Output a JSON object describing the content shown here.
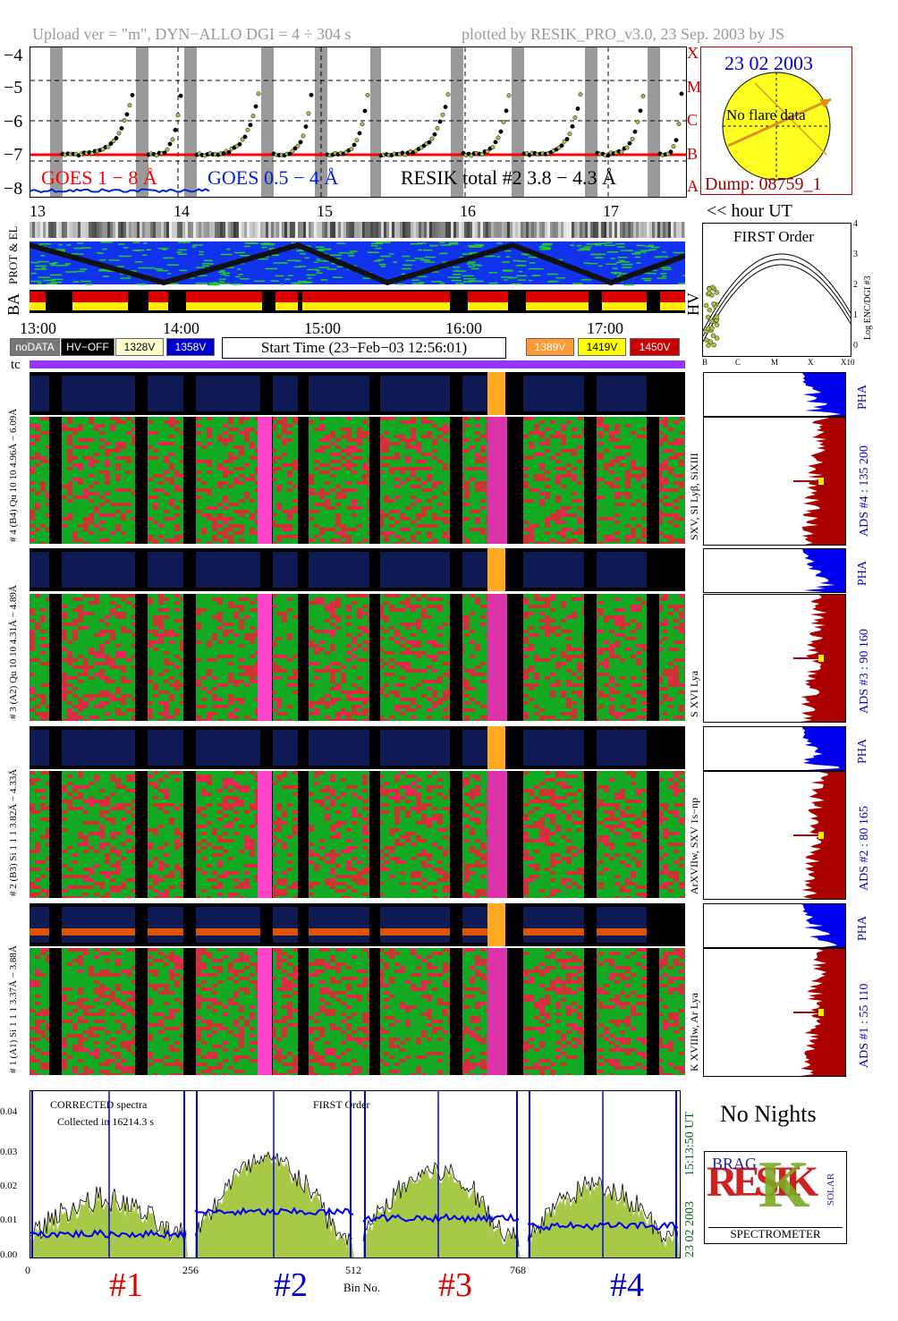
{
  "header": {
    "upload_info": "Upload ver = \"m\", DYN−ALLO DGI =   4 ÷ 304 s",
    "plot_info": "plotted by RESIK_PRO_v3.0, 23 Sep. 2003 by JS"
  },
  "goes_panel": {
    "y_ticks": [
      "−4",
      "−5",
      "−6",
      "−7",
      "−8"
    ],
    "class_labels": [
      "X",
      "M",
      "C",
      "B",
      "A"
    ],
    "legend_goes1": "GOES 1 − 8 Å",
    "legend_goes05": "GOES 0.5 − 4 Å",
    "legend_resik": "RESIK total #2  3.8 − 4.3 Å",
    "hour_labels": [
      "13",
      "14",
      "15",
      "16",
      "17"
    ],
    "hour_ut_label": "<< hour UT",
    "colors": {
      "goes1": "#ff0000",
      "goes05": "#0022dd",
      "resik": "#a8c040",
      "gaps": "#9a9a9a"
    }
  },
  "sun_panel": {
    "date": "23 02 2003",
    "note": "No flare data",
    "dump": "Dump: 08759_1"
  },
  "status_strips": {
    "label_prot": "PROT & EL",
    "label_ba": "BA",
    "label_hv": "HV",
    "time_labels": [
      "13:00",
      "14:00",
      "15:00",
      "16:00",
      "17:00"
    ]
  },
  "legend_bar": {
    "nodata": "noDATA",
    "hvoff": "HV−OFF",
    "v1328": "1328V",
    "v1358": "1358V",
    "start_time": "Start Time (23−Feb−03 12:56:01)",
    "v1389": "1389V",
    "v1419": "1419V",
    "v1450": "1450V",
    "tc": "tc"
  },
  "first_order_plot": {
    "title": "FIRST Order",
    "y_label": "Log ENC/DGI #3",
    "y_ticks": [
      "4",
      "3",
      "2",
      "1",
      "0"
    ],
    "x_ticks": [
      "B",
      "C",
      "M",
      "X",
      "X10"
    ]
  },
  "channels": [
    {
      "pha_label": "# 4 (B4) Qu 10 10 4.96Å − 6.09Å",
      "right_label": "SXV, SI Lyβ, SiXIII",
      "ads_label": "ADS #4 :   135 200",
      "pha_tag": "PHA"
    },
    {
      "pha_label": "# 3 (A2) Qu 10 10 4.31Å − 4.89Å",
      "right_label": "S XVI Lya",
      "ads_label": "ADS #3 :   90 160",
      "pha_tag": "PHA"
    },
    {
      "pha_label": "# 2 (B3) Si 1 1 1  3.82Å − 4.33Å",
      "right_label": "ArXVIIw, SXV 1s−np",
      "ads_label": "ADS #2 :   80 165",
      "pha_tag": "PHA"
    },
    {
      "pha_label": "# 1 (A1) Si 1 1 1  3.37Å − 3.88Å",
      "right_label": "K XVIIIw, Ar Lya",
      "ads_label": "ADS #1 :   55 110",
      "pha_tag": "PHA"
    }
  ],
  "spectrum_panel": {
    "note_line1": "CORRECTED spectra",
    "note_line2": "Collected in 16214.3 s",
    "first_order": "FIRST Order",
    "y_ticks": [
      "0.04",
      "0.03",
      "0.02",
      "0.01",
      "0.00"
    ],
    "x_ticks": [
      "0",
      "256",
      "512",
      "768"
    ],
    "x_label": "Bin No.",
    "channel_labels": [
      "#1",
      "#2",
      "#3",
      "#4"
    ],
    "channel_colors": [
      "#dd0000",
      "#0000cc",
      "#dd0000",
      "#0000cc"
    ],
    "date_stamp": "23 02 2003",
    "time_stamp": "15:13:50 UT"
  },
  "no_nights": "No Nights",
  "logo": {
    "big_letters": "RESIK",
    "subtitle": "SPECTROMETER",
    "small": "BRAG",
    "side": "SOLAR"
  }
}
